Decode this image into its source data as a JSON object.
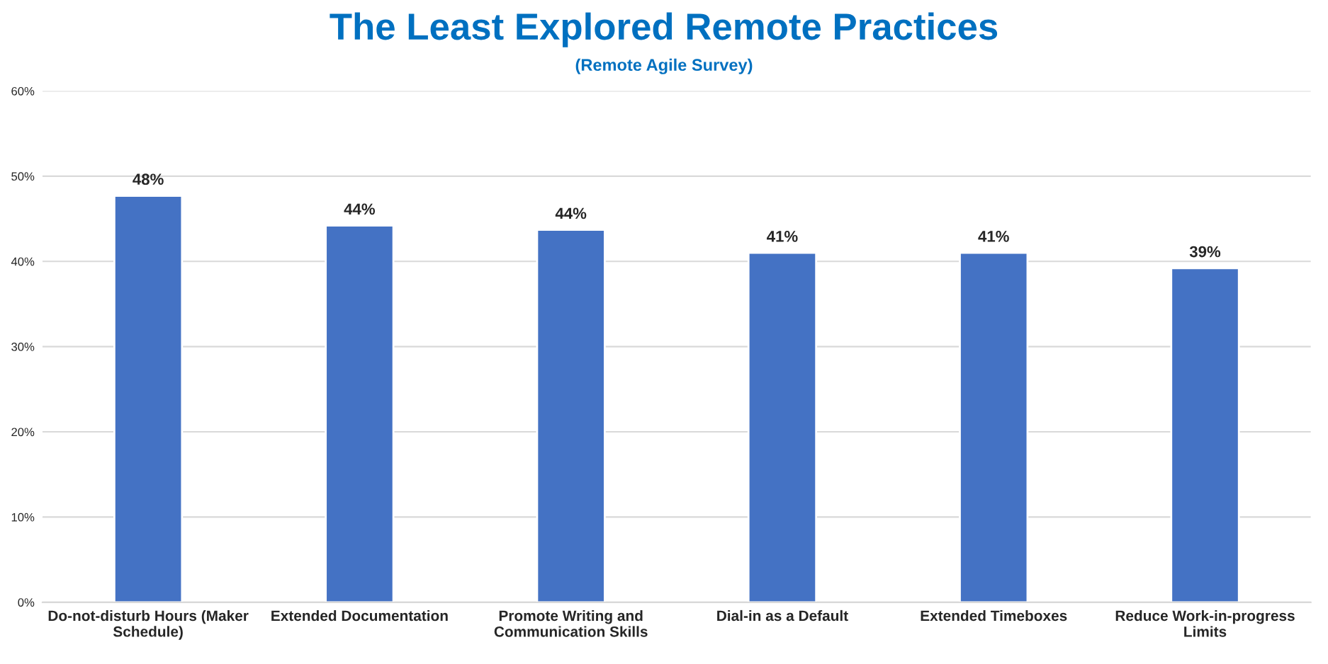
{
  "chart_data": {
    "type": "bar",
    "title": "The Least Explored Remote Practices",
    "subtitle": "(Remote Agile Survey)",
    "categories": [
      "Do-not-disturb Hours (Maker\nSchedule)",
      "Extended Documentation",
      "Promote Writing and\nCommunication Skills",
      "Dial-in as a Default",
      "Extended Timeboxes",
      "Reduce Work-in-progress\nLimits"
    ],
    "values": [
      47.7,
      44.2,
      43.7,
      41.0,
      41.0,
      39.2
    ],
    "value_labels": [
      "48%",
      "44%",
      "44%",
      "41%",
      "41%",
      "39%"
    ],
    "color": "#4472c4",
    "ylim": [
      0,
      60
    ],
    "yticks": [
      {
        "value": 0,
        "label": "0%"
      },
      {
        "value": 10,
        "label": "10%"
      },
      {
        "value": 20,
        "label": "20%"
      },
      {
        "value": 30,
        "label": "30%"
      },
      {
        "value": 40,
        "label": "40%"
      },
      {
        "value": 50,
        "label": "50%"
      },
      {
        "value": 60,
        "label": "60%"
      }
    ],
    "grid": "y",
    "legend": false
  }
}
